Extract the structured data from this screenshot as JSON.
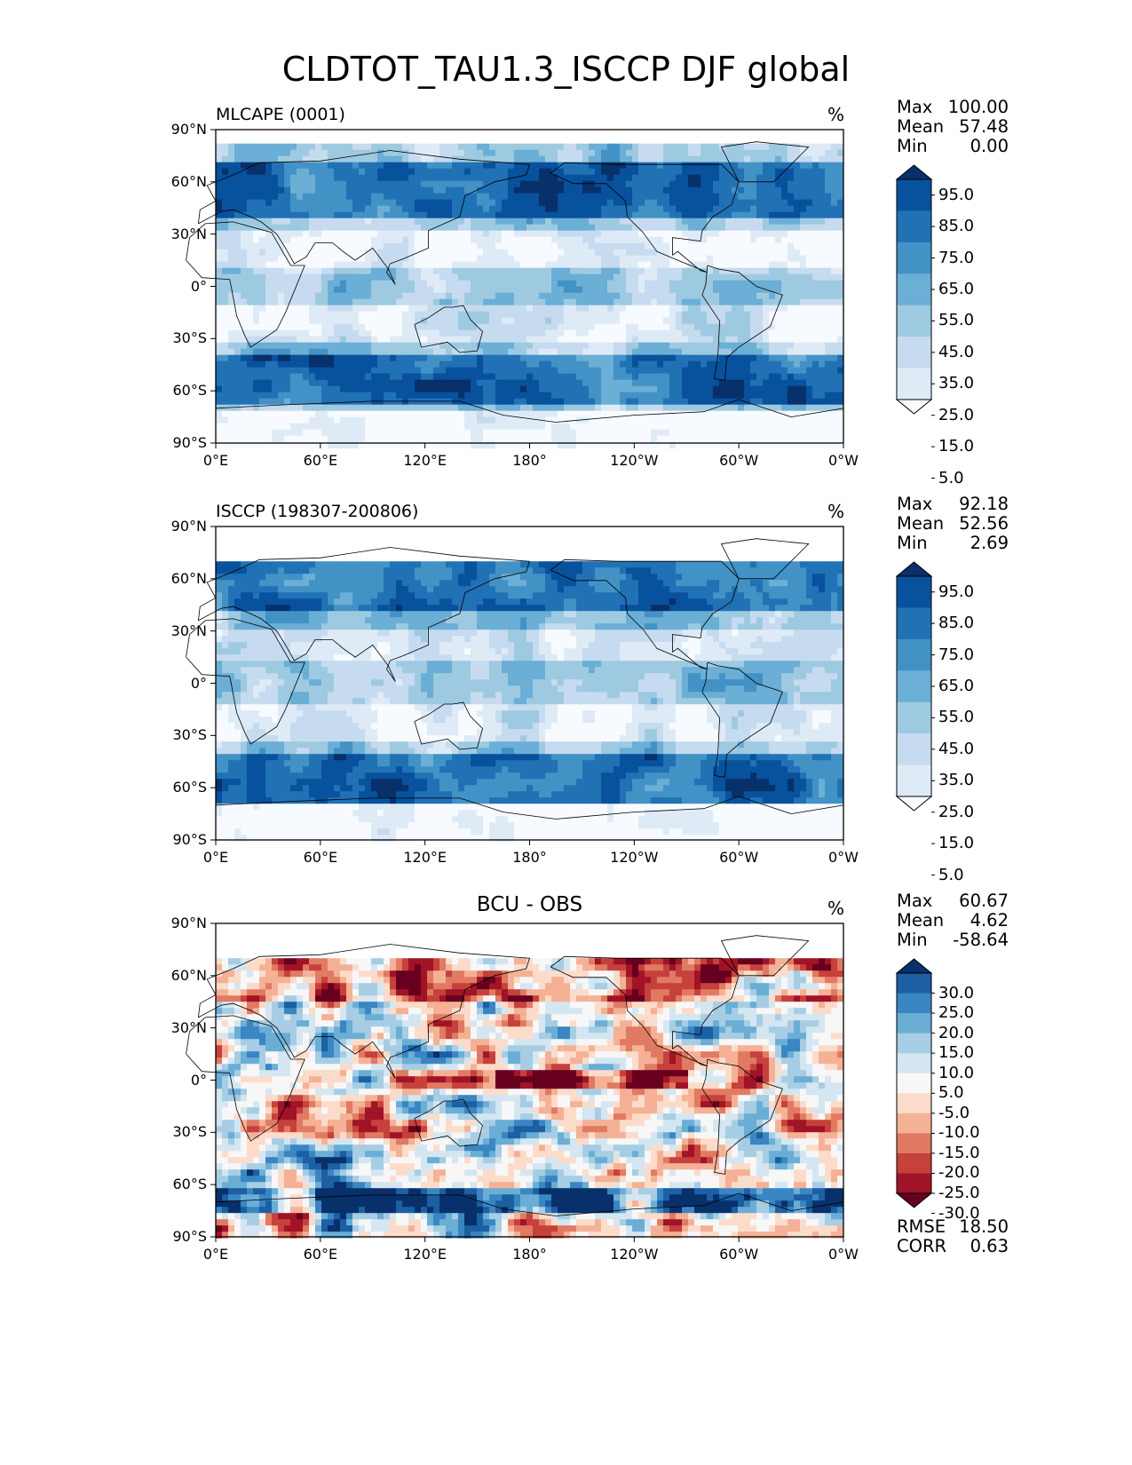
{
  "title": "CLDTOT_TAU1.3_ISCCP DJF global",
  "chart_data": [
    {
      "type": "heatmap",
      "title": "MLCAPE (0001)",
      "units": "%",
      "xticks": [
        "0°E",
        "60°E",
        "120°E",
        "180°",
        "120°W",
        "60°W",
        "0°W"
      ],
      "yticks": [
        "90°N",
        "60°N",
        "30°N",
        "0°",
        "30°S",
        "60°S",
        "90°S"
      ],
      "xlim": [
        0,
        360
      ],
      "ylim": [
        -90,
        90
      ],
      "data_lat_range": [
        -90,
        82
      ],
      "stats": {
        "Max": "100.00",
        "Mean": "57.48",
        "Min": "0.00"
      },
      "colorbar": {
        "extend": "both",
        "ticks": [
          "95.0",
          "85.0",
          "75.0",
          "65.0",
          "55.0",
          "45.0",
          "35.0",
          "25.0",
          "15.0",
          "5.0"
        ],
        "colors": [
          "#08306b",
          "#08519c",
          "#2171b5",
          "#4292c6",
          "#6baed6",
          "#9ecae1",
          "#c6dbef",
          "#deebf7",
          "#f7fbff"
        ]
      }
    },
    {
      "type": "heatmap",
      "title": "ISCCP (198307-200806)",
      "units": "%",
      "xticks": [
        "0°E",
        "60°E",
        "120°E",
        "180°",
        "120°W",
        "60°W",
        "0°W"
      ],
      "yticks": [
        "90°N",
        "60°N",
        "30°N",
        "0°",
        "30°S",
        "60°S",
        "90°S"
      ],
      "xlim": [
        0,
        360
      ],
      "ylim": [
        -90,
        90
      ],
      "data_lat_range": [
        -90,
        70
      ],
      "stats": {
        "Max": "92.18",
        "Mean": "52.56",
        "Min": "2.69"
      },
      "colorbar": {
        "extend": "both",
        "ticks": [
          "95.0",
          "85.0",
          "75.0",
          "65.0",
          "55.0",
          "45.0",
          "35.0",
          "25.0",
          "15.0",
          "5.0"
        ],
        "colors": [
          "#08306b",
          "#08519c",
          "#2171b5",
          "#4292c6",
          "#6baed6",
          "#9ecae1",
          "#c6dbef",
          "#deebf7",
          "#f7fbff"
        ]
      }
    },
    {
      "type": "heatmap",
      "title": "BCU - OBS",
      "units": "%",
      "xticks": [
        "0°E",
        "60°E",
        "120°E",
        "180°",
        "120°W",
        "60°W",
        "0°W"
      ],
      "yticks": [
        "90°N",
        "60°N",
        "30°N",
        "0°",
        "30°S",
        "60°S",
        "90°S"
      ],
      "xlim": [
        0,
        360
      ],
      "ylim": [
        -90,
        90
      ],
      "data_lat_range": [
        -90,
        70
      ],
      "stats": {
        "Max": "60.67",
        "Mean": "4.62",
        "Min": "-58.64"
      },
      "metrics": {
        "RMSE": "18.50",
        "CORR": "0.63"
      },
      "colorbar": {
        "extend": "both",
        "ticks": [
          "30.0",
          "25.0",
          "20.0",
          "15.0",
          "10.0",
          "5.0",
          "-5.0",
          "-10.0",
          "-15.0",
          "-20.0",
          "-25.0",
          "-30.0"
        ],
        "colors": [
          "#08306b",
          "#1c5fa3",
          "#3a86c2",
          "#6aaed6",
          "#a6cde3",
          "#d4e6f1",
          "#f7f7f7",
          "#fbdccb",
          "#f4b196",
          "#e17a62",
          "#c6413b",
          "#a11327",
          "#67001f"
        ]
      }
    }
  ]
}
